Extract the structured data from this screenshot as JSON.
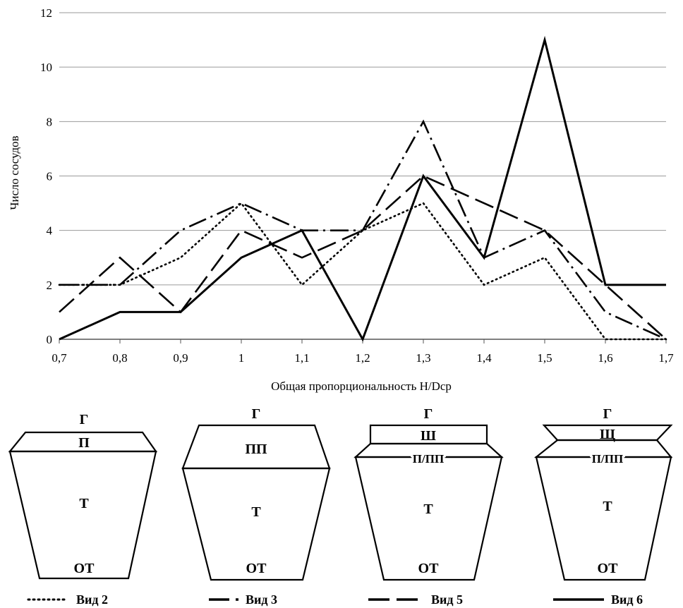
{
  "chart_data": {
    "type": "line",
    "x": [
      0.7,
      0.8,
      0.9,
      1.0,
      1.1,
      1.2,
      1.3,
      1.4,
      1.5,
      1.6,
      1.7
    ],
    "x_tick_labels": [
      "0,7",
      "0,8",
      "0,9",
      "1",
      "1,1",
      "1,2",
      "1,3",
      "1,4",
      "1,5",
      "1,6",
      "1,7"
    ],
    "y_ticks": [
      0,
      2,
      4,
      6,
      8,
      10,
      12
    ],
    "ylim": [
      0,
      12
    ],
    "xlabel": "Общая пропорциональность H/Dср",
    "ylabel": "Число сосудов",
    "grid": "horizontal",
    "legend_position": "bottom",
    "series": [
      {
        "name": "Вид 2",
        "style": "dotted",
        "values": [
          2,
          2,
          3,
          5,
          2,
          4,
          5,
          2,
          3,
          0,
          0
        ]
      },
      {
        "name": "Вид 3",
        "style": "dash-dot",
        "values": [
          2,
          2,
          4,
          5,
          4,
          4,
          8,
          3,
          4,
          1,
          0
        ]
      },
      {
        "name": "Вид 5",
        "style": "dashed",
        "values": [
          1,
          3,
          1,
          4,
          3,
          4,
          6,
          5,
          4,
          2,
          0
        ]
      },
      {
        "name": "Вид 6",
        "style": "solid",
        "values": [
          0,
          1,
          1,
          3,
          4,
          0,
          6,
          3,
          11,
          2,
          2
        ]
      }
    ]
  },
  "vessels": [
    {
      "name": "Вид 2",
      "labels": [
        "Г",
        "П",
        "Т",
        "ОТ"
      ]
    },
    {
      "name": "Вид 3",
      "labels": [
        "Г",
        "ПП",
        "Т",
        "ОТ"
      ]
    },
    {
      "name": "Вид 5",
      "labels": [
        "Г",
        "Ш",
        "П/ПП",
        "Т",
        "ОТ"
      ]
    },
    {
      "name": "Вид 6",
      "labels": [
        "Г",
        "Щ",
        "П/ПП",
        "Т",
        "ОТ"
      ]
    }
  ]
}
